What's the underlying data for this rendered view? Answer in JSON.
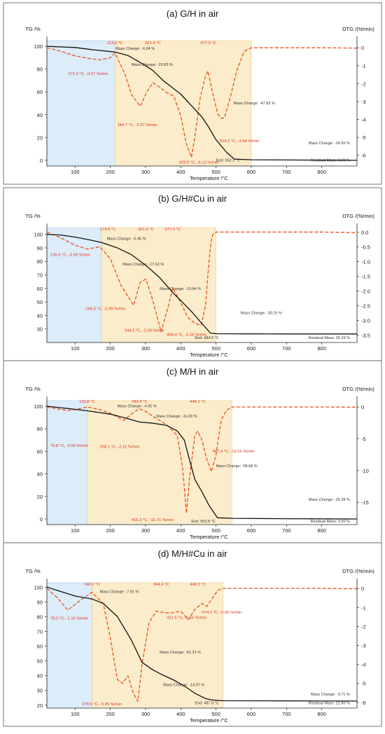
{
  "colors": {
    "tg": "#111111",
    "dtg": "#e8501e",
    "drying": "#dcecf8",
    "decomp": "#fbeccb",
    "annotation_red": "#e03020"
  },
  "chart_data": [
    {
      "type": "line",
      "title": "(a) G/H in air",
      "ylabel": "TG /%",
      "y2label": "DTG /(%/min)",
      "xlabel": "Temperature /°C",
      "xlim": [
        20,
        900
      ],
      "ylim": [
        -5,
        105
      ],
      "y2lim": [
        -6.6,
        0.4
      ],
      "xticks": [
        100,
        200,
        300,
        400,
        500,
        600,
        700,
        800
      ],
      "yticks": [
        0,
        20,
        40,
        60,
        80,
        100
      ],
      "y2ticks": [
        0,
        -1,
        -2,
        -3,
        -4,
        -5,
        -6
      ],
      "regions": [
        [
          20,
          213
        ],
        [
          213,
          600
        ]
      ],
      "tg": {
        "x": [
          20,
          100,
          150,
          213,
          250,
          300,
          320,
          350,
          400,
          430,
          460,
          477,
          500,
          530,
          552,
          600,
          700,
          800,
          900
        ],
        "y": [
          100,
          99,
          97,
          95,
          92,
          83,
          79,
          70,
          58,
          48,
          38,
          30,
          18,
          7,
          1,
          0.5,
          0.3,
          0.1,
          0
        ]
      },
      "dtg": {
        "x": [
          20,
          60,
          100,
          140,
          172,
          200,
          213,
          240,
          260,
          285,
          305,
          321,
          340,
          360,
          380,
          400,
          415,
          430,
          440,
          455,
          470,
          477,
          490,
          505,
          515,
          524,
          540,
          560,
          580,
          600,
          700,
          800,
          900
        ],
        "y": [
          0,
          -0.2,
          -0.45,
          -0.6,
          -0.67,
          -0.55,
          -0.3,
          -1.4,
          -2.6,
          -3.27,
          -2.4,
          -1.95,
          -2.2,
          -2.5,
          -2.7,
          -3.8,
          -5.3,
          -6.12,
          -5.0,
          -2.8,
          -1.6,
          -1.3,
          -2.5,
          -3.7,
          -3.94,
          -3.9,
          -2.8,
          -1.2,
          -0.2,
          0,
          0,
          0,
          -0.02
        ]
      },
      "ann_red": [
        {
          "text": "213.0 °C",
          "x": 213,
          "y": 102,
          "anchor": "middle"
        },
        {
          "text": "321.4 °C",
          "x": 321,
          "y": 102,
          "anchor": "middle"
        },
        {
          "text": "477.9 °C",
          "x": 478,
          "y": 102,
          "anchor": "middle"
        },
        {
          "text": "172.3 °C, -0.67 %/min",
          "x": 80,
          "y": 75,
          "anchor": "start"
        },
        {
          "text": "284.7 °C, -3.27 %/min",
          "x": 220,
          "y": 30,
          "anchor": "start"
        },
        {
          "text": "429.9 °C, -6.12 %/min",
          "x": 395,
          "y": -3,
          "anchor": "start"
        },
        {
          "text": "524.2 °C, -3.94 %/min",
          "x": 510,
          "y": 16,
          "anchor": "start"
        }
      ],
      "ann_black": [
        {
          "text": "Mass Change: -6.04 %",
          "x": 215,
          "y": 97,
          "anchor": "start"
        },
        {
          "text": "Mass Change: -20.83 %",
          "x": 260,
          "y": 83,
          "anchor": "start"
        },
        {
          "text": "Mass Change: -47.83 %",
          "x": 550,
          "y": 49,
          "anchor": "start"
        },
        {
          "text": "Mass Change: -24.55 %",
          "x": 880,
          "y": 14,
          "anchor": "end"
        },
        {
          "text": "End: 552.1 °C",
          "x": 500,
          "y": -1,
          "anchor": "start"
        },
        {
          "text": "Residual Mass: 0.00 %",
          "x": 880,
          "y": -1,
          "anchor": "end"
        }
      ]
    },
    {
      "type": "line",
      "title": "(b) G/H#Cu in air",
      "ylabel": "TG /%",
      "y2label": "DTG /(%/min)",
      "xlabel": "Temperature /°C",
      "xlim": [
        20,
        900
      ],
      "ylim": [
        20,
        105
      ],
      "y2lim": [
        -3.75,
        0.15
      ],
      "xticks": [
        100,
        200,
        300,
        400,
        500,
        600,
        700,
        800
      ],
      "yticks": [
        30,
        40,
        50,
        60,
        70,
        80,
        90,
        100
      ],
      "y2ticks": [
        0.0,
        -0.5,
        -1.0,
        -1.5,
        -2.0,
        -2.5,
        -3.0,
        -3.5
      ],
      "y2tick_labels": [
        "0.0",
        "-0.5",
        "-1.0",
        "-1.5",
        "-2.0",
        "-2.5",
        "-3.0",
        "-3.5"
      ],
      "regions": [
        [
          20,
          175
        ],
        [
          175,
          500
        ]
      ],
      "tg": {
        "x": [
          20,
          60,
          100,
          140,
          175,
          220,
          260,
          301,
          340,
          377,
          400,
          430,
          460,
          484,
          500,
          600,
          700,
          800,
          900
        ],
        "y": [
          100,
          99.5,
          98,
          96,
          94,
          90,
          85,
          77,
          68,
          57,
          51,
          43,
          34,
          27,
          26.5,
          26.4,
          26.3,
          26.3,
          26.3
        ]
      },
      "dtg": {
        "x": [
          20,
          60,
          100,
          135,
          170,
          200,
          230,
          266,
          285,
          301,
          320,
          344,
          365,
          377,
          400,
          420,
          440,
          458,
          470,
          480,
          485,
          490,
          500,
          600,
          700,
          800,
          900
        ],
        "y": [
          0,
          -0.2,
          -0.45,
          -0.58,
          -0.5,
          -0.9,
          -1.8,
          -2.49,
          -1.7,
          -1.6,
          -2.3,
          -3.39,
          -2.5,
          -1.9,
          -2.4,
          -2.9,
          -3.1,
          -3.16,
          -2.5,
          -1.0,
          -0.4,
          -0.1,
          0,
          0,
          0,
          0,
          -0.02
        ]
      },
      "ann_red": [
        {
          "text": "174.8 °C",
          "x": 193,
          "y": 103,
          "anchor": "middle"
        },
        {
          "text": "301.0 °C",
          "x": 301,
          "y": 103,
          "anchor": "middle"
        },
        {
          "text": "377.0 °C",
          "x": 377,
          "y": 103,
          "anchor": "middle"
        },
        {
          "text": "135.5 °C, -0.58 %/min",
          "x": 30,
          "y": 84,
          "anchor": "start"
        },
        {
          "text": "266.3 °C, -2.49 %/min",
          "x": 130,
          "y": 44,
          "anchor": "start"
        },
        {
          "text": "344.2 °C, -3.39 %/min",
          "x": 240,
          "y": 28,
          "anchor": "start"
        },
        {
          "text": "458.4 °C, -3.16 %/min",
          "x": 360,
          "y": 25,
          "anchor": "start"
        }
      ],
      "ann_black": [
        {
          "text": "Mass Change: -5.96 %",
          "x": 190,
          "y": 96,
          "anchor": "start"
        },
        {
          "text": "Mass Change: -17.62 %",
          "x": 235,
          "y": 77,
          "anchor": "start"
        },
        {
          "text": "Mass Change: -19.84 %",
          "x": 340,
          "y": 59,
          "anchor": "start"
        },
        {
          "text": "Mass Change: -30.15 %",
          "x": 570,
          "y": 41,
          "anchor": "start"
        },
        {
          "text": "End: 484.6 °C",
          "x": 440,
          "y": 22.5,
          "anchor": "start"
        },
        {
          "text": "Residual Mass: 26.29 %",
          "x": 880,
          "y": 22.5,
          "anchor": "end"
        }
      ]
    },
    {
      "type": "line",
      "title": "(c) M/H in air",
      "ylabel": "TG /%",
      "y2label": "DTG /(%/min)",
      "xlabel": "Temperature /°C",
      "xlim": [
        20,
        900
      ],
      "ylim": [
        -5,
        105
      ],
      "y2lim": [
        -18.5,
        1.0
      ],
      "xticks": [
        100,
        200,
        300,
        400,
        500,
        600,
        700,
        800
      ],
      "yticks": [
        0,
        20,
        40,
        60,
        80,
        100
      ],
      "y2ticks": [
        0,
        -5,
        -10,
        -15
      ],
      "regions": [
        [
          20,
          134
        ],
        [
          134,
          545
        ]
      ],
      "tg": {
        "x": [
          20,
          80,
          134,
          200,
          250,
          283,
          320,
          360,
          390,
          410,
          425,
          440,
          460,
          480,
          504,
          550,
          700,
          800,
          900
        ],
        "y": [
          100,
          98,
          96,
          93,
          89,
          86,
          85,
          83,
          78,
          70,
          52,
          35,
          24,
          12,
          1,
          0.5,
          0.2,
          0.1,
          0
        ]
      },
      "dtg": {
        "x": [
          20,
          50,
          80,
          110,
          134,
          170,
          200,
          238,
          265,
          283,
          300,
          330,
          360,
          390,
          405,
          416,
          425,
          440,
          448,
          460,
          475,
          487,
          500,
          515,
          530,
          545,
          600,
          700,
          800,
          900
        ],
        "y": [
          0,
          -0.3,
          -0.56,
          -0.3,
          0,
          -0.4,
          -1.0,
          -2.11,
          -0.9,
          -0.3,
          -0.7,
          -1.8,
          -2.8,
          -4.5,
          -9.5,
          -16.71,
          -11.0,
          -4.5,
          -3.8,
          -5.2,
          -8.5,
          -10.16,
          -7.5,
          -2.0,
          -0.5,
          0,
          0,
          0,
          0,
          -0.02
        ]
      },
      "ann_red": [
        {
          "text": "133.8 °C",
          "x": 134,
          "y": 103,
          "anchor": "middle"
        },
        {
          "text": "282.9 °C",
          "x": 283,
          "y": 103,
          "anchor": "middle"
        },
        {
          "text": "448.1 °C",
          "x": 448,
          "y": 103,
          "anchor": "middle"
        },
        {
          "text": "79.8 °C, -0.56 %/min",
          "x": 30,
          "y": 64,
          "anchor": "start"
        },
        {
          "text": "238.1 °C, -2.11 %/min",
          "x": 170,
          "y": 63,
          "anchor": "start"
        },
        {
          "text": "487.4 °C, -10.16 %/min",
          "x": 490,
          "y": 59,
          "anchor": "start"
        },
        {
          "text": "416.3 °C, -16.71 %/min",
          "x": 260,
          "y": -2,
          "anchor": "start"
        }
      ],
      "ann_black": [
        {
          "text": "Mass Change: -4.05 %",
          "x": 220,
          "y": 99,
          "anchor": "start"
        },
        {
          "text": "Mass Change: -11.09 %",
          "x": 330,
          "y": 90,
          "anchor": "start"
        },
        {
          "text": "Mass Change: -58.68 %",
          "x": 500,
          "y": 46,
          "anchor": "start"
        },
        {
          "text": "Mass Change: -25.28 %",
          "x": 880,
          "y": 16,
          "anchor": "end"
        },
        {
          "text": "End: 503.8 °C",
          "x": 430,
          "y": -3,
          "anchor": "start"
        },
        {
          "text": "Residual Mass: 0.00 %",
          "x": 880,
          "y": -3,
          "anchor": "end"
        }
      ]
    },
    {
      "type": "line",
      "title": "(d) M/H#Cu in air",
      "ylabel": "TG /%",
      "y2label": "DTG /(%/min)",
      "xlabel": "Temperature /°C",
      "xlim": [
        20,
        900
      ],
      "ylim": [
        18,
        103
      ],
      "y2lim": [
        -6.3,
        0.3
      ],
      "xticks": [
        100,
        200,
        300,
        400,
        500,
        600,
        700,
        800
      ],
      "yticks": [
        20,
        30,
        40,
        50,
        60,
        70,
        80,
        90,
        100
      ],
      "y2ticks": [
        0,
        -1,
        -2,
        -3,
        -4,
        -5,
        -6
      ],
      "regions": [
        [
          20,
          148
        ],
        [
          148,
          520
        ]
      ],
      "tg": {
        "x": [
          20,
          60,
          100,
          148,
          180,
          220,
          260,
          290,
          320,
          344,
          380,
          410,
          440,
          470,
          487,
          520,
          700,
          800,
          900
        ],
        "y": [
          100,
          97,
          94,
          92,
          89,
          80,
          64,
          49,
          44,
          41,
          37,
          33,
          28,
          24.5,
          23.5,
          23,
          22.9,
          22.8,
          22.8
        ]
      },
      "dtg": {
        "x": [
          20,
          50,
          79,
          110,
          148,
          180,
          200,
          220,
          235,
          250,
          265,
          278,
          290,
          310,
          330,
          344,
          370,
          400,
          421,
          440,
          460,
          474,
          490,
          505,
          520,
          600,
          700,
          800,
          900
        ],
        "y": [
          0,
          -0.5,
          -1.14,
          -0.7,
          -0.2,
          -0.8,
          -2.6,
          -4.8,
          -5.0,
          -4.6,
          -5.5,
          -5.95,
          -4.0,
          -1.8,
          -1.2,
          -1.25,
          -1.3,
          -1.2,
          -1.65,
          -1.1,
          -0.8,
          -0.95,
          -0.5,
          -0.1,
          0,
          0,
          0,
          0,
          -0.02
        ]
      },
      "ann_red": [
        {
          "text": "148.2 °C",
          "x": 148,
          "y": 101,
          "anchor": "middle"
        },
        {
          "text": "344.4 °C",
          "x": 344,
          "y": 101,
          "anchor": "middle"
        },
        {
          "text": "448.3 °C",
          "x": 448,
          "y": 101,
          "anchor": "middle"
        },
        {
          "text": "78.5 °C, -1.14 %/min",
          "x": 30,
          "y": 78,
          "anchor": "start"
        },
        {
          "text": "474.1 °C, -0.95 %/min",
          "x": 460,
          "y": 82,
          "anchor": "start"
        },
        {
          "text": "421.6 °C, -1.65 %/min",
          "x": 360,
          "y": 78.5,
          "anchor": "start"
        },
        {
          "text": "278.6 °C, -5.95 %/min",
          "x": 120,
          "y": 20,
          "anchor": "start"
        }
      ],
      "ann_black": [
        {
          "text": "Mass Change: -7.91 %",
          "x": 170,
          "y": 96,
          "anchor": "start"
        },
        {
          "text": "Mass Change: -51.31 %",
          "x": 340,
          "y": 55,
          "anchor": "start"
        },
        {
          "text": "Mass Change: -14.07 %",
          "x": 350,
          "y": 33,
          "anchor": "start"
        },
        {
          "text": "Mass Change: -3.71 %",
          "x": 880,
          "y": 26.5,
          "anchor": "end"
        },
        {
          "text": "End: 487.0 °C",
          "x": 440,
          "y": 20.5,
          "anchor": "start"
        },
        {
          "text": "Residual Mass: 22.80 %",
          "x": 880,
          "y": 20.5,
          "anchor": "end"
        }
      ]
    }
  ]
}
